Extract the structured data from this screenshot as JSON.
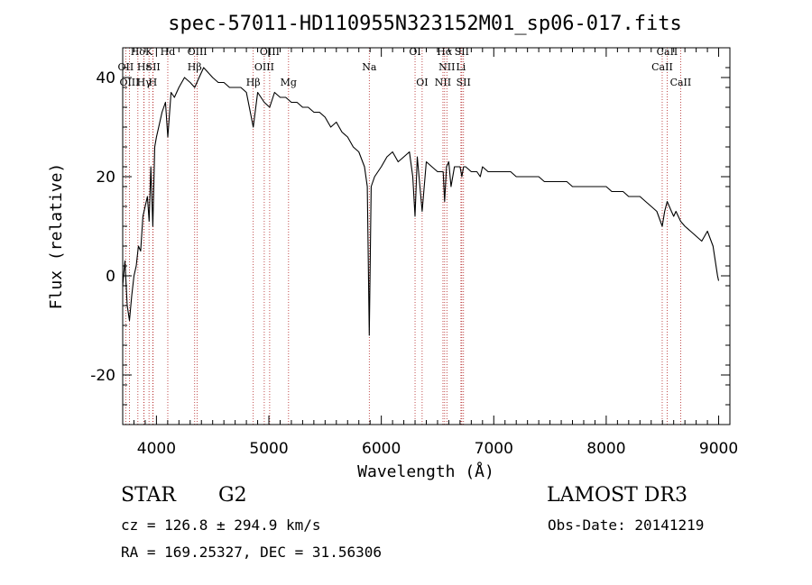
{
  "chart_data": {
    "type": "line",
    "title": "spec-57011-HD110955N323152M01_sp06-017.fits",
    "xlabel": "Wavelength (Å)",
    "ylabel": "Flux (relative)",
    "xlim": [
      3700,
      9100
    ],
    "ylim": [
      -30,
      46
    ],
    "x_ticks": [
      4000,
      5000,
      6000,
      7000,
      8000,
      9000
    ],
    "y_ticks": [
      -20,
      0,
      20,
      40
    ],
    "grid": false,
    "legend": "none",
    "line_color": "#000000",
    "marker_color": "#b22222",
    "series": [
      {
        "x": [
          3700,
          3720,
          3740,
          3760,
          3780,
          3800,
          3820,
          3840,
          3860,
          3880,
          3900,
          3920,
          3935,
          3950,
          3968,
          3985,
          4000,
          4020,
          4050,
          4080,
          4101,
          4130,
          4160,
          4200,
          4250,
          4300,
          4340,
          4380,
          4420,
          4460,
          4500,
          4550,
          4600,
          4650,
          4700,
          4750,
          4800,
          4861,
          4900,
          4959,
          5007,
          5050,
          5100,
          5150,
          5200,
          5250,
          5300,
          5350,
          5400,
          5450,
          5500,
          5550,
          5600,
          5650,
          5700,
          5750,
          5800,
          5850,
          5875,
          5893,
          5910,
          5940,
          6000,
          6050,
          6100,
          6150,
          6200,
          6250,
          6280,
          6300,
          6320,
          6363,
          6400,
          6450,
          6500,
          6550,
          6563,
          6580,
          6600,
          6620,
          6650,
          6700,
          6716,
          6731,
          6750,
          6800,
          6850,
          6880,
          6900,
          6950,
          7000,
          7050,
          7100,
          7150,
          7200,
          7250,
          7300,
          7350,
          7400,
          7450,
          7500,
          7550,
          7600,
          7650,
          7700,
          7750,
          7800,
          7850,
          7900,
          7950,
          8000,
          8050,
          8100,
          8150,
          8200,
          8250,
          8300,
          8350,
          8400,
          8450,
          8498,
          8520,
          8542,
          8580,
          8600,
          8620,
          8662,
          8700,
          8750,
          8800,
          8850,
          8900,
          8950,
          8990,
          9000
        ],
        "y": [
          -2,
          3,
          -6,
          -9,
          -4,
          0,
          2,
          6,
          5,
          12,
          14,
          16,
          11,
          22,
          10,
          26,
          28,
          30,
          33,
          35,
          28,
          37,
          36,
          38,
          40,
          39,
          38,
          40,
          42,
          41,
          40,
          39,
          39,
          38,
          38,
          38,
          37,
          30,
          37,
          35,
          34,
          37,
          36,
          36,
          35,
          35,
          34,
          34,
          33,
          33,
          32,
          30,
          31,
          29,
          28,
          26,
          25,
          22,
          18,
          -12,
          18,
          20,
          22,
          24,
          25,
          23,
          24,
          25,
          20,
          12,
          24,
          13,
          23,
          22,
          21,
          21,
          15,
          22,
          23,
          18,
          22,
          22,
          20,
          22,
          22,
          21,
          21,
          20,
          22,
          21,
          21,
          21,
          21,
          21,
          20,
          20,
          20,
          20,
          20,
          19,
          19,
          19,
          19,
          19,
          18,
          18,
          18,
          18,
          18,
          18,
          18,
          17,
          17,
          17,
          16,
          16,
          16,
          15,
          14,
          13,
          10,
          13,
          15,
          13,
          12,
          13,
          11,
          10,
          9,
          8,
          7,
          9,
          6,
          0,
          -1
        ]
      }
    ],
    "lines": [
      {
        "label": "Hδ",
        "row": 1,
        "x": 3835
      },
      {
        "label": "OII",
        "row": 2,
        "x": 3727
      },
      {
        "label": "OIII",
        "row": 3,
        "x": 3760
      },
      {
        "label": "Hε",
        "row": 2,
        "x": 3889
      },
      {
        "label": "Hγ",
        "row": 3,
        "x": 3890
      },
      {
        "label": "K",
        "row": 1,
        "x": 3934
      },
      {
        "label": "SII",
        "row": 2,
        "x": 3970
      },
      {
        "label": "H",
        "row": 3,
        "x": 3968
      },
      {
        "label": "Hd",
        "row": 1,
        "x": 4101
      },
      {
        "label": "OIII",
        "row": 1,
        "x": 4363
      },
      {
        "label": "Hβ",
        "row": 2,
        "x": 4340
      },
      {
        "label": "OIII",
        "row": 1,
        "x": 5007
      },
      {
        "label": "OIII",
        "row": 2,
        "x": 4959
      },
      {
        "label": "Hβ",
        "row": 3,
        "x": 4861
      },
      {
        "label": "Mg",
        "row": 3,
        "x": 5175
      },
      {
        "label": "Na",
        "row": 2,
        "x": 5893
      },
      {
        "label": "OI",
        "row": 1,
        "x": 6300
      },
      {
        "label": "OI",
        "row": 3,
        "x": 6363
      },
      {
        "label": "Hα",
        "row": 1,
        "x": 6563
      },
      {
        "label": "SII",
        "row": 1,
        "x": 6716
      },
      {
        "label": "NII",
        "row": 2,
        "x": 6583
      },
      {
        "label": "Li",
        "row": 2,
        "x": 6708
      },
      {
        "label": "NII",
        "row": 3,
        "x": 6548
      },
      {
        "label": "SII",
        "row": 3,
        "x": 6731
      },
      {
        "label": "CaII",
        "row": 1,
        "x": 8542
      },
      {
        "label": "CaII",
        "row": 2,
        "x": 8498
      },
      {
        "label": "CaII",
        "row": 3,
        "x": 8662
      }
    ]
  },
  "footer": {
    "object_type": "STAR",
    "subclass": "G2",
    "survey": "LAMOST DR3",
    "cz": "cz = 126.8 ± 294.9 km/s",
    "obs_date": "Obs-Date: 20141219",
    "coords": "RA = 169.25327, DEC =  31.56306"
  }
}
